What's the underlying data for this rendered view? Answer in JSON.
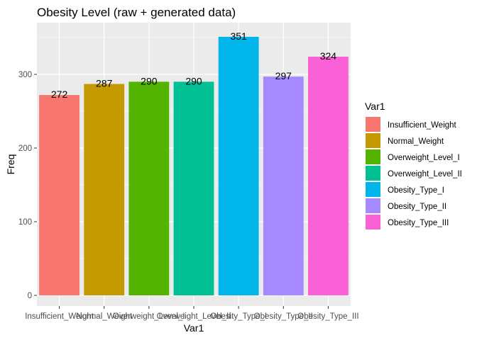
{
  "chart_data": {
    "type": "bar",
    "title": "Obesity Level (raw + generated data)",
    "xlabel": "Var1",
    "ylabel": "Freq",
    "categories": [
      "Insufficient_Weight",
      "Normal_Weight",
      "Overweight_Level_I",
      "Overweight_Level_II",
      "Obesity_Type_I",
      "Obesity_Type_II",
      "Obesity_Type_III"
    ],
    "values": [
      272,
      287,
      290,
      290,
      351,
      297,
      324
    ],
    "colors": [
      "#F8766D",
      "#C49A00",
      "#53B400",
      "#00C094",
      "#00B6EB",
      "#A58AFF",
      "#FB61D7"
    ],
    "ylim": [
      0,
      365
    ],
    "yticks": [
      0,
      100,
      200,
      300
    ],
    "grid": true,
    "background": "#EBEBEB",
    "legend": {
      "title": "Var1",
      "placement": "right",
      "entries": [
        "Insufficient_Weight",
        "Normal_Weight",
        "Overweight_Level_I",
        "Overweight_Level_II",
        "Obesity_Type_I",
        "Obesity_Type_II",
        "Obesity_Type_III"
      ]
    }
  }
}
